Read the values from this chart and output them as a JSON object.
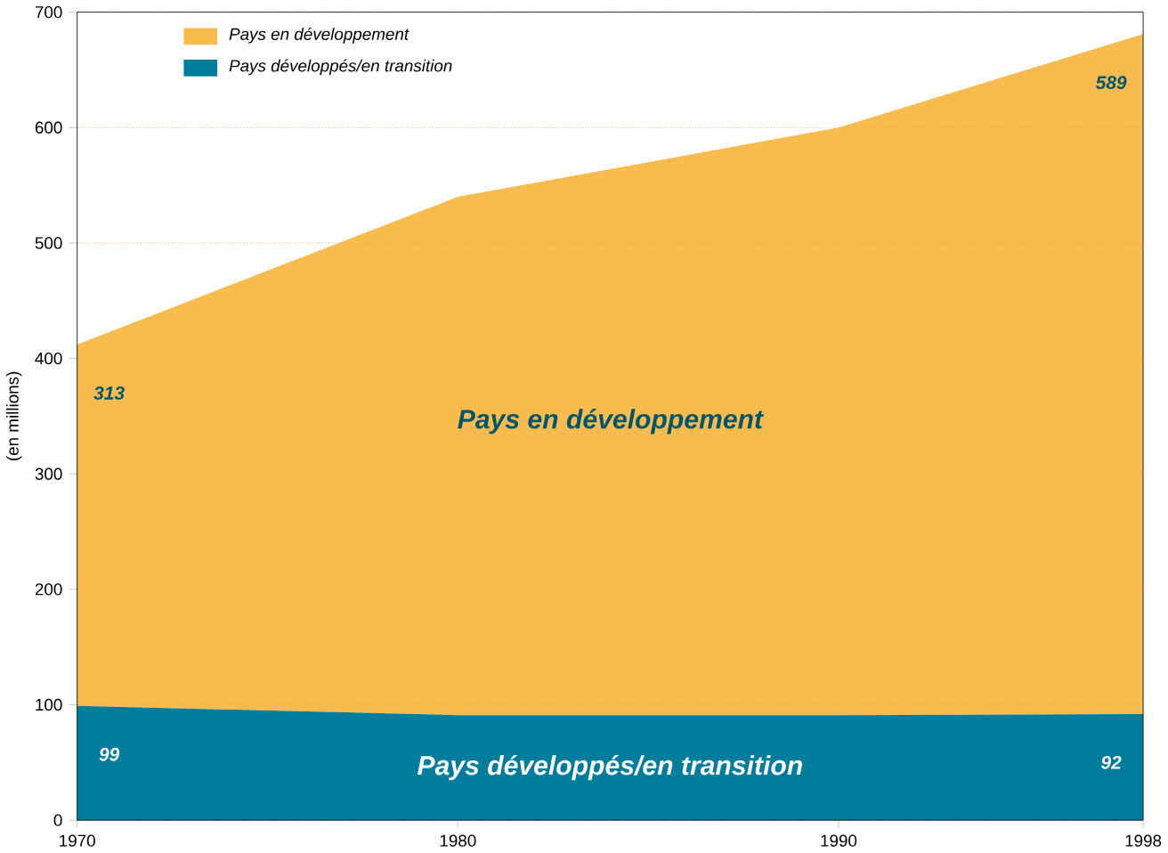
{
  "chart_data": {
    "type": "area",
    "stacked": true,
    "x": [
      1970,
      1980,
      1990,
      1998
    ],
    "ylabel": "(en millions)",
    "xlim": [
      1970,
      1998
    ],
    "ylim": [
      0,
      700
    ],
    "xticks": [
      1970,
      1980,
      1990,
      1998
    ],
    "yticks": [
      0,
      100,
      200,
      300,
      400,
      500,
      600,
      700
    ],
    "grid": "y",
    "legend": "top left",
    "series": [
      {
        "name": "Pays développés/en transition",
        "color": "#007c9c",
        "values": [
          99,
          91,
          91,
          92
        ],
        "value_labels": [
          "99",
          null,
          null,
          "92"
        ]
      },
      {
        "name": "Pays en développement",
        "color": "#f9bb4e",
        "values": [
          313,
          449,
          509,
          589
        ],
        "value_labels": [
          "313",
          null,
          null,
          "589"
        ]
      }
    ]
  }
}
